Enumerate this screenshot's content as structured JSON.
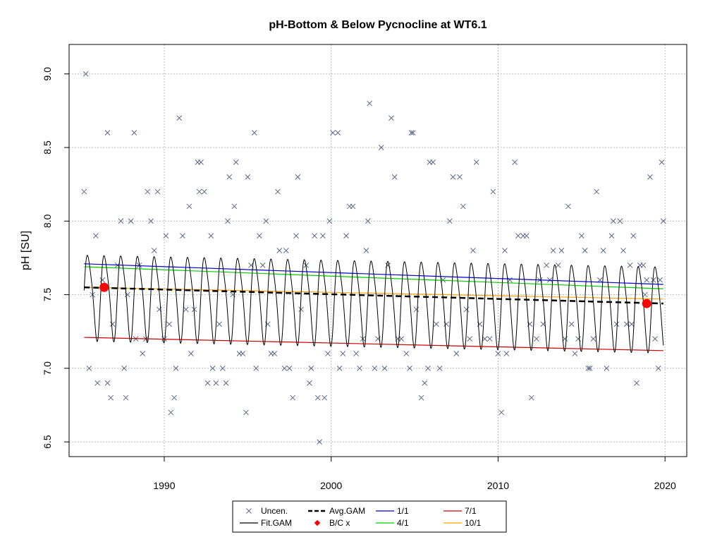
{
  "chart_data": {
    "type": "scatter",
    "title": "pH-Bottom & Below Pycnocline at WT6.1",
    "xlabel": "",
    "ylabel": "pH [SU]",
    "xlim": [
      1984.3,
      2021.3
    ],
    "ylim": [
      6.4,
      9.2
    ],
    "x_ticks": [
      1990,
      2000,
      2010,
      2020
    ],
    "y_ticks": [
      6.5,
      7.0,
      7.5,
      8.0,
      8.5,
      9.0
    ],
    "x_tick_labels": [
      "1990",
      "2000",
      "2010",
      "2020"
    ],
    "y_tick_labels": [
      "6.5",
      "7.0",
      "7.5",
      "8.0",
      "8.5",
      "9.0"
    ],
    "grid": true,
    "legend_position": "bottom-center",
    "legend": [
      {
        "key": "uncen",
        "label": "Uncen."
      },
      {
        "key": "fit_gam",
        "label": "Fit.GAM"
      },
      {
        "key": "avg_gam",
        "label": "Avg.GAM"
      },
      {
        "key": "bc",
        "label": "B/C x"
      },
      {
        "key": "p11",
        "label": "1/1"
      },
      {
        "key": "p41",
        "label": "4/1"
      },
      {
        "key": "p71",
        "label": "7/1"
      },
      {
        "key": "p101",
        "label": "10/1"
      }
    ],
    "colors": {
      "uncen": "#5a6a8a",
      "fit_gam": "#000000",
      "avg_gam": "#000000",
      "bc": "#ff0000",
      "p11": "#0000cc",
      "p41": "#00cc00",
      "p71": "#cc0000",
      "p101": "#ffa500",
      "grid": "#bbbbbb"
    },
    "fit_gam_params": {
      "x_start": 1985.2,
      "x_end": 2019.9,
      "mean_start": 7.5,
      "mean_end": 7.42,
      "amplitude": 0.28,
      "cycles_per_year": 1
    },
    "avg_gam": {
      "x": [
        1985.2,
        2019.9
      ],
      "y": [
        7.55,
        7.44
      ]
    },
    "trend_lines": [
      {
        "key": "p11",
        "x": [
          1985.2,
          2019.9
        ],
        "y": [
          7.71,
          7.57
        ]
      },
      {
        "key": "p41",
        "x": [
          1985.2,
          2019.9
        ],
        "y": [
          7.69,
          7.54
        ]
      },
      {
        "key": "p71",
        "x": [
          1985.2,
          2019.9
        ],
        "y": [
          7.21,
          7.12
        ]
      },
      {
        "key": "p101",
        "x": [
          1985.2,
          2019.9
        ],
        "y": [
          7.55,
          7.47
        ]
      }
    ],
    "bc_points": [
      {
        "x": 1986.4,
        "y": 7.55
      },
      {
        "x": 2018.9,
        "y": 7.44
      }
    ],
    "uncen_points": [
      [
        1985.2,
        8.2
      ],
      [
        1985.3,
        9.0
      ],
      [
        1985.5,
        7.0
      ],
      [
        1985.7,
        7.5
      ],
      [
        1985.9,
        7.9
      ],
      [
        1986.0,
        6.9
      ],
      [
        1986.3,
        7.6
      ],
      [
        1986.6,
        8.6
      ],
      [
        1986.6,
        6.9
      ],
      [
        1986.8,
        6.8
      ],
      [
        1986.9,
        7.3
      ],
      [
        1987.2,
        7.7
      ],
      [
        1987.4,
        8.0
      ],
      [
        1987.6,
        7.0
      ],
      [
        1987.7,
        6.8
      ],
      [
        1987.8,
        7.5
      ],
      [
        1988.0,
        8.0
      ],
      [
        1988.2,
        8.6
      ],
      [
        1988.3,
        7.2
      ],
      [
        1988.5,
        7.7
      ],
      [
        1988.7,
        7.1
      ],
      [
        1988.9,
        7.2
      ],
      [
        1989.0,
        8.2
      ],
      [
        1989.2,
        8.0
      ],
      [
        1989.4,
        7.8
      ],
      [
        1989.6,
        8.2
      ],
      [
        1989.7,
        7.4
      ],
      [
        1990.0,
        7.2
      ],
      [
        1990.1,
        7.9
      ],
      [
        1990.3,
        7.3
      ],
      [
        1990.4,
        6.7
      ],
      [
        1990.6,
        6.8
      ],
      [
        1990.7,
        7.0
      ],
      [
        1990.9,
        8.7
      ],
      [
        1991.1,
        7.9
      ],
      [
        1991.3,
        7.4
      ],
      [
        1991.5,
        8.1
      ],
      [
        1991.6,
        7.1
      ],
      [
        1991.8,
        7.4
      ],
      [
        1992.0,
        8.4
      ],
      [
        1992.1,
        8.2
      ],
      [
        1992.2,
        8.4
      ],
      [
        1992.4,
        8.2
      ],
      [
        1992.6,
        6.9
      ],
      [
        1992.8,
        7.9
      ],
      [
        1992.9,
        7.0
      ],
      [
        1993.1,
        6.9
      ],
      [
        1993.3,
        7.3
      ],
      [
        1993.5,
        7.0
      ],
      [
        1993.7,
        6.9
      ],
      [
        1993.8,
        8.0
      ],
      [
        1993.9,
        8.3
      ],
      [
        1994.1,
        7.5
      ],
      [
        1994.2,
        8.1
      ],
      [
        1994.3,
        8.4
      ],
      [
        1994.5,
        7.1
      ],
      [
        1994.7,
        7.1
      ],
      [
        1994.9,
        6.7
      ],
      [
        1995.0,
        8.3
      ],
      [
        1995.2,
        7.7
      ],
      [
        1995.4,
        8.6
      ],
      [
        1995.5,
        7.0
      ],
      [
        1995.7,
        7.9
      ],
      [
        1995.9,
        7.7
      ],
      [
        1996.1,
        8.0
      ],
      [
        1996.2,
        7.3
      ],
      [
        1996.4,
        7.1
      ],
      [
        1996.6,
        7.1
      ],
      [
        1996.8,
        8.2
      ],
      [
        1996.9,
        7.8
      ],
      [
        1997.2,
        7.0
      ],
      [
        1997.3,
        7.8
      ],
      [
        1997.5,
        7.0
      ],
      [
        1997.7,
        6.8
      ],
      [
        1997.9,
        7.9
      ],
      [
        1998.0,
        8.3
      ],
      [
        1998.2,
        7.4
      ],
      [
        1998.5,
        7.7
      ],
      [
        1998.7,
        6.9
      ],
      [
        1998.8,
        7.0
      ],
      [
        1999.0,
        7.9
      ],
      [
        1999.2,
        6.8
      ],
      [
        1999.3,
        6.5
      ],
      [
        1999.5,
        7.9
      ],
      [
        1999.6,
        6.8
      ],
      [
        1999.8,
        7.1
      ],
      [
        1999.9,
        8.0
      ],
      [
        2000.1,
        8.6
      ],
      [
        2000.4,
        8.6
      ],
      [
        2000.5,
        7.0
      ],
      [
        2000.7,
        7.1
      ],
      [
        2000.9,
        7.9
      ],
      [
        2001.1,
        8.1
      ],
      [
        2001.3,
        8.1
      ],
      [
        2001.5,
        7.1
      ],
      [
        2001.7,
        7.0
      ],
      [
        2001.9,
        7.2
      ],
      [
        2002.1,
        7.8
      ],
      [
        2002.2,
        8.0
      ],
      [
        2002.3,
        8.8
      ],
      [
        2002.6,
        7.0
      ],
      [
        2002.8,
        7.2
      ],
      [
        2003.0,
        8.5
      ],
      [
        2003.2,
        7.0
      ],
      [
        2003.4,
        7.7
      ],
      [
        2003.6,
        8.7
      ],
      [
        2003.8,
        8.3
      ],
      [
        2004.0,
        7.2
      ],
      [
        2004.2,
        7.2
      ],
      [
        2004.5,
        7.1
      ],
      [
        2004.7,
        7.0
      ],
      [
        2004.8,
        8.6
      ],
      [
        2004.9,
        8.6
      ],
      [
        2005.1,
        7.4
      ],
      [
        2005.4,
        6.8
      ],
      [
        2005.6,
        6.9
      ],
      [
        2005.8,
        7.0
      ],
      [
        2005.9,
        8.4
      ],
      [
        2006.1,
        8.4
      ],
      [
        2006.3,
        7.3
      ],
      [
        2006.5,
        7.0
      ],
      [
        2006.7,
        7.6
      ],
      [
        2006.9,
        7.3
      ],
      [
        2007.1,
        8.0
      ],
      [
        2007.3,
        8.3
      ],
      [
        2007.5,
        7.1
      ],
      [
        2007.7,
        8.3
      ],
      [
        2007.9,
        8.1
      ],
      [
        2008.1,
        7.4
      ],
      [
        2008.3,
        7.2
      ],
      [
        2008.5,
        7.8
      ],
      [
        2008.7,
        8.4
      ],
      [
        2008.9,
        7.3
      ],
      [
        2009.2,
        7.2
      ],
      [
        2009.5,
        7.2
      ],
      [
        2009.7,
        8.2
      ],
      [
        2010.0,
        7.1
      ],
      [
        2010.2,
        6.7
      ],
      [
        2010.4,
        7.8
      ],
      [
        2010.5,
        7.1
      ],
      [
        2010.7,
        7.6
      ],
      [
        2011.0,
        8.4
      ],
      [
        2011.2,
        7.9
      ],
      [
        2011.5,
        7.9
      ],
      [
        2011.7,
        7.9
      ],
      [
        2011.9,
        7.3
      ],
      [
        2012.0,
        6.8
      ],
      [
        2012.3,
        7.2
      ],
      [
        2012.5,
        7.6
      ],
      [
        2012.7,
        7.3
      ],
      [
        2012.9,
        7.7
      ],
      [
        2013.1,
        7.6
      ],
      [
        2013.3,
        7.8
      ],
      [
        2013.6,
        7.7
      ],
      [
        2013.8,
        7.8
      ],
      [
        2014.0,
        7.2
      ],
      [
        2014.2,
        8.1
      ],
      [
        2014.4,
        7.3
      ],
      [
        2014.6,
        7.1
      ],
      [
        2014.8,
        7.2
      ],
      [
        2015.0,
        7.9
      ],
      [
        2015.2,
        7.8
      ],
      [
        2015.4,
        7.0
      ],
      [
        2015.5,
        7.0
      ],
      [
        2015.7,
        7.2
      ],
      [
        2015.9,
        8.2
      ],
      [
        2016.1,
        7.6
      ],
      [
        2016.3,
        7.8
      ],
      [
        2016.5,
        7.0
      ],
      [
        2016.8,
        7.9
      ],
      [
        2016.9,
        8.0
      ],
      [
        2017.1,
        7.3
      ],
      [
        2017.3,
        8.0
      ],
      [
        2017.5,
        7.8
      ],
      [
        2017.7,
        7.3
      ],
      [
        2017.9,
        7.7
      ],
      [
        2018.0,
        7.3
      ],
      [
        2018.1,
        7.9
      ],
      [
        2018.3,
        6.9
      ],
      [
        2018.5,
        7.7
      ],
      [
        2018.7,
        7.7
      ],
      [
        2018.9,
        7.6
      ],
      [
        2019.1,
        8.3
      ],
      [
        2019.3,
        7.6
      ],
      [
        2019.4,
        7.2
      ],
      [
        2019.6,
        7.0
      ],
      [
        2019.8,
        8.4
      ],
      [
        2019.9,
        8.0
      ],
      [
        2019.7,
        7.6
      ],
      [
        2018.8,
        7.5
      ]
    ]
  }
}
